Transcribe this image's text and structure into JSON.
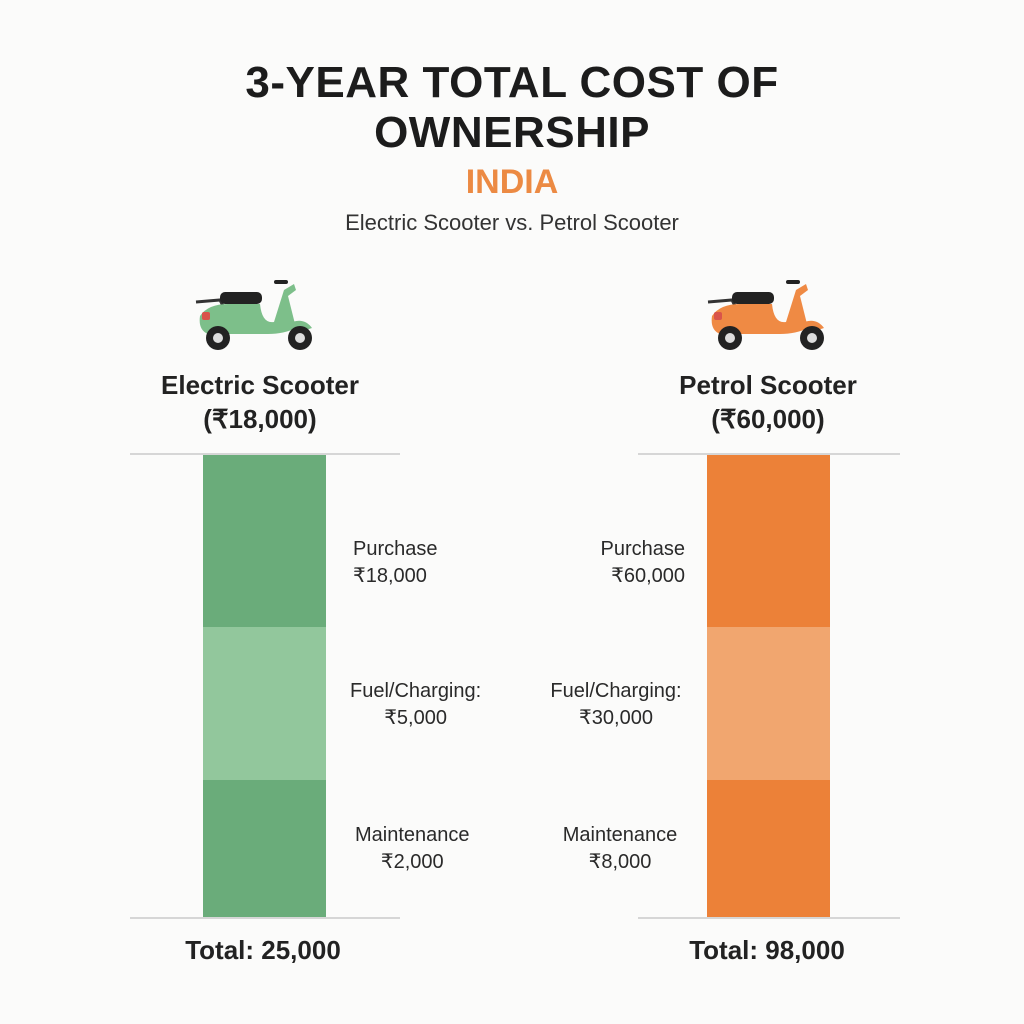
{
  "header": {
    "title_line1": "3-YEAR TOTAL COST OF",
    "title_line2": "OWNERSHIP",
    "country": "INDIA",
    "subtitle": "Electric Scooter vs. Petrol Scooter"
  },
  "colors": {
    "accent": "#ec8a43"
  },
  "chart_data": {
    "type": "bar",
    "stacked": true,
    "title": "3-Year Total Cost of Ownership - India",
    "categories": [
      "Electric Scooter",
      "Petrol Scooter"
    ],
    "series": [
      {
        "name": "Purchase",
        "values": [
          18000,
          60000
        ]
      },
      {
        "name": "Fuel/Charging",
        "values": [
          5000,
          30000
        ]
      },
      {
        "name": "Maintenance",
        "values": [
          2000,
          8000
        ]
      }
    ],
    "totals": [
      25000,
      98000
    ]
  },
  "columns": [
    {
      "name": "Electric Scooter",
      "price": "(₹18,000)",
      "icon": "scooter-icon",
      "colors": {
        "dark": "#6aac7a",
        "light": "#92c79c",
        "body": "#7dbf8a"
      },
      "segments": [
        {
          "label": "Purchase",
          "value": "₹18,000"
        },
        {
          "label": "Fuel/Charging:",
          "value": "₹5,000"
        },
        {
          "label": "Maintenance",
          "value": "₹2,000"
        }
      ],
      "total": "Total: 25,000"
    },
    {
      "name": "Petrol Scooter",
      "price": "(₹60,000)",
      "icon": "scooter-icon",
      "colors": {
        "dark": "#ec8138",
        "light": "#f1a66f",
        "body": "#ef8a44"
      },
      "segments": [
        {
          "label": "Purchase",
          "value": "₹60,000"
        },
        {
          "label": "Fuel/Charging:",
          "value": "₹30,000"
        },
        {
          "label": "Maintenance",
          "value": "₹8,000"
        }
      ],
      "total": "Total: 98,000"
    }
  ]
}
